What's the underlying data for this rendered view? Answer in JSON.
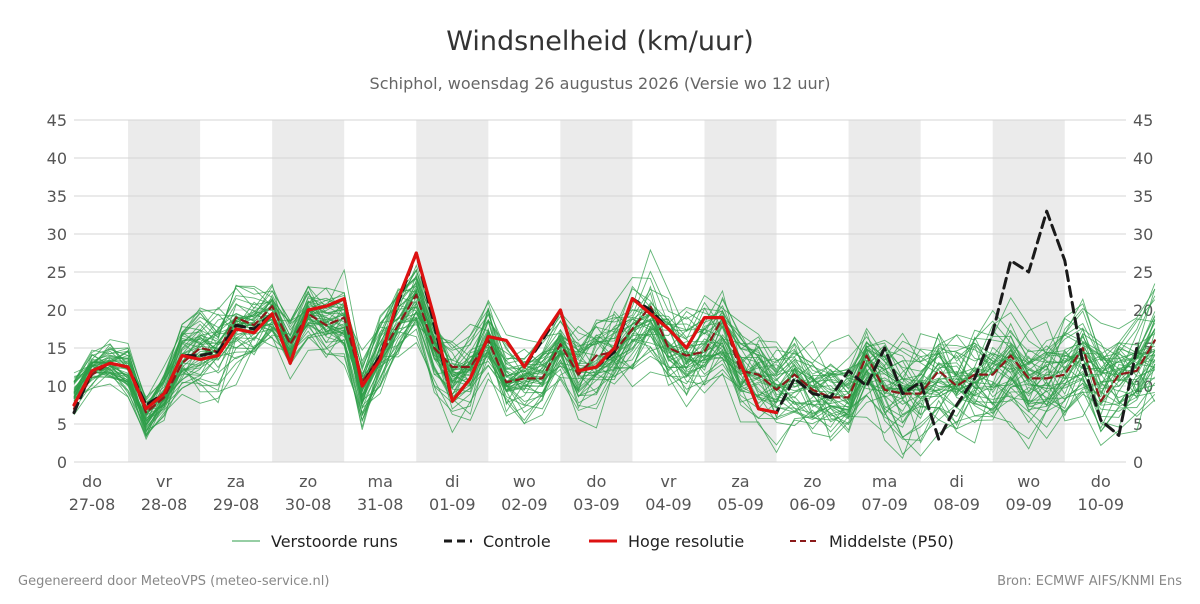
{
  "chart_data": {
    "type": "line",
    "title": "Windsnelheid (km/uur)",
    "subtitle": "Schiphol, woensdag 26 augustus 2026 (Versie wo 12 uur)",
    "ylim": [
      0,
      45
    ],
    "yticks": [
      0,
      5,
      10,
      15,
      20,
      25,
      30,
      35,
      40,
      45
    ],
    "grid": true,
    "shaded_days": [
      "do",
      "za",
      "ma",
      "wo",
      "vr",
      "zo",
      "di",
      "do"
    ],
    "x_unit": "day index from 27-08 (6-hour steps)",
    "xlim": [
      -0.25,
      14.35
    ],
    "day_ticks": [
      {
        "day": "do",
        "date": "27-08"
      },
      {
        "day": "vr",
        "date": "28-08"
      },
      {
        "day": "za",
        "date": "29-08"
      },
      {
        "day": "zo",
        "date": "30-08"
      },
      {
        "day": "ma",
        "date": "31-08"
      },
      {
        "day": "di",
        "date": "01-09"
      },
      {
        "day": "wo",
        "date": "02-09"
      },
      {
        "day": "do",
        "date": "03-09"
      },
      {
        "day": "vr",
        "date": "04-09"
      },
      {
        "day": "za",
        "date": "05-09"
      },
      {
        "day": "zo",
        "date": "06-09"
      },
      {
        "day": "ma",
        "date": "07-09"
      },
      {
        "day": "di",
        "date": "08-09"
      },
      {
        "day": "wo",
        "date": "09-09"
      },
      {
        "day": "do",
        "date": "10-09"
      }
    ],
    "series": [
      {
        "name": "Controle",
        "color": "#1a1a1a",
        "style": "dashed",
        "x_start": -0.25,
        "x_step": 0.25,
        "values": [
          6.5,
          12,
          13,
          12.5,
          7.5,
          9,
          14,
          14,
          14.5,
          18,
          17.5,
          19.5,
          13,
          20,
          20.5,
          21.5,
          10,
          14,
          21,
          27.5,
          18,
          8,
          11,
          16.5,
          16,
          12.5,
          16,
          20,
          12,
          12.5,
          14.5,
          21.5,
          20,
          17.5,
          15,
          19,
          19,
          13,
          7,
          6.5,
          11,
          9,
          8.5,
          12,
          10,
          15,
          9,
          10.5,
          3,
          7.5,
          11,
          17,
          26.5,
          25,
          33,
          26.5,
          13,
          5.5,
          3.5,
          15
        ]
      },
      {
        "name": "Hoge resolutie",
        "color": "#dd1111",
        "style": "solid",
        "x_start": -0.25,
        "x_step": 0.25,
        "values": [
          7.5,
          12,
          13,
          12.5,
          7,
          9,
          14,
          13.5,
          14,
          17.5,
          17,
          19.5,
          13,
          20,
          20.5,
          21.5,
          10,
          13.5,
          21.5,
          27.5,
          19,
          8,
          11,
          16.5,
          16,
          12.5,
          16.5,
          20,
          12,
          12.5,
          15,
          21.5,
          19.5,
          17.5,
          15,
          19,
          19,
          13,
          7,
          6.5
        ]
      },
      {
        "name": "Middelste (P50)",
        "color": "#8b1a1a",
        "style": "dashed",
        "x_start": -0.25,
        "x_step": 0.25,
        "values": [
          7,
          11.5,
          13,
          12.5,
          6.5,
          8.5,
          13,
          15,
          14.5,
          19,
          18,
          20.5,
          15.5,
          19.5,
          18,
          19,
          10.5,
          14,
          18,
          22,
          15,
          12.5,
          12.5,
          16,
          10.5,
          11,
          11,
          15.5,
          11.5,
          14,
          14.5,
          17.5,
          20.5,
          15,
          14,
          14.5,
          19,
          12,
          11.5,
          9.5,
          11.5,
          9.5,
          8.5,
          8.5,
          14,
          9.5,
          9,
          9,
          12,
          10,
          11.5,
          11.5,
          14,
          11,
          11,
          11.5,
          15,
          8,
          11.5,
          12,
          16
        ]
      }
    ],
    "ensemble": {
      "name": "Verstoorde runs",
      "color": "#2e9e48",
      "members": 50,
      "x_start": -0.25,
      "x_step": 0.25,
      "mean_values": [
        9,
        12.5,
        13,
        12,
        6,
        9,
        14,
        15,
        15,
        18,
        18,
        19.5,
        15,
        19.5,
        18.5,
        18.5,
        9,
        14,
        18,
        21,
        15,
        11,
        12,
        16,
        11,
        11,
        12,
        15.5,
        12,
        13,
        14.5,
        17.5,
        19,
        15,
        14,
        15,
        16.5,
        12,
        11,
        10,
        11,
        9,
        8.5,
        8.5,
        12.5,
        10,
        9,
        9.5,
        11,
        10,
        11,
        11.5,
        13,
        11,
        11,
        12,
        13.5,
        10,
        11,
        12,
        15
      ],
      "spread_values": [
        3,
        3,
        3,
        3.5,
        3.5,
        4,
        5,
        6,
        6,
        6,
        5,
        5,
        5,
        5,
        5,
        6,
        6,
        6,
        6,
        6,
        6,
        6,
        6,
        6,
        6,
        6,
        6,
        6.5,
        7,
        7,
        7,
        7,
        7,
        7,
        7,
        7,
        7,
        7,
        7,
        7,
        7,
        7,
        7,
        7,
        8,
        8,
        8,
        8,
        8,
        8,
        8,
        8,
        8,
        8,
        8,
        8,
        8,
        8,
        8,
        8,
        8
      ]
    },
    "legend": {
      "placement": "bottom",
      "entries": [
        "Verstoorde runs",
        "Controle",
        "Hoge resolutie",
        "Middelste (P50)"
      ]
    }
  },
  "footer": {
    "left": "Gegenereerd door MeteoVPS (meteo-service.nl)",
    "right": "Bron: ECMWF AIFS/KNMI Ens"
  }
}
